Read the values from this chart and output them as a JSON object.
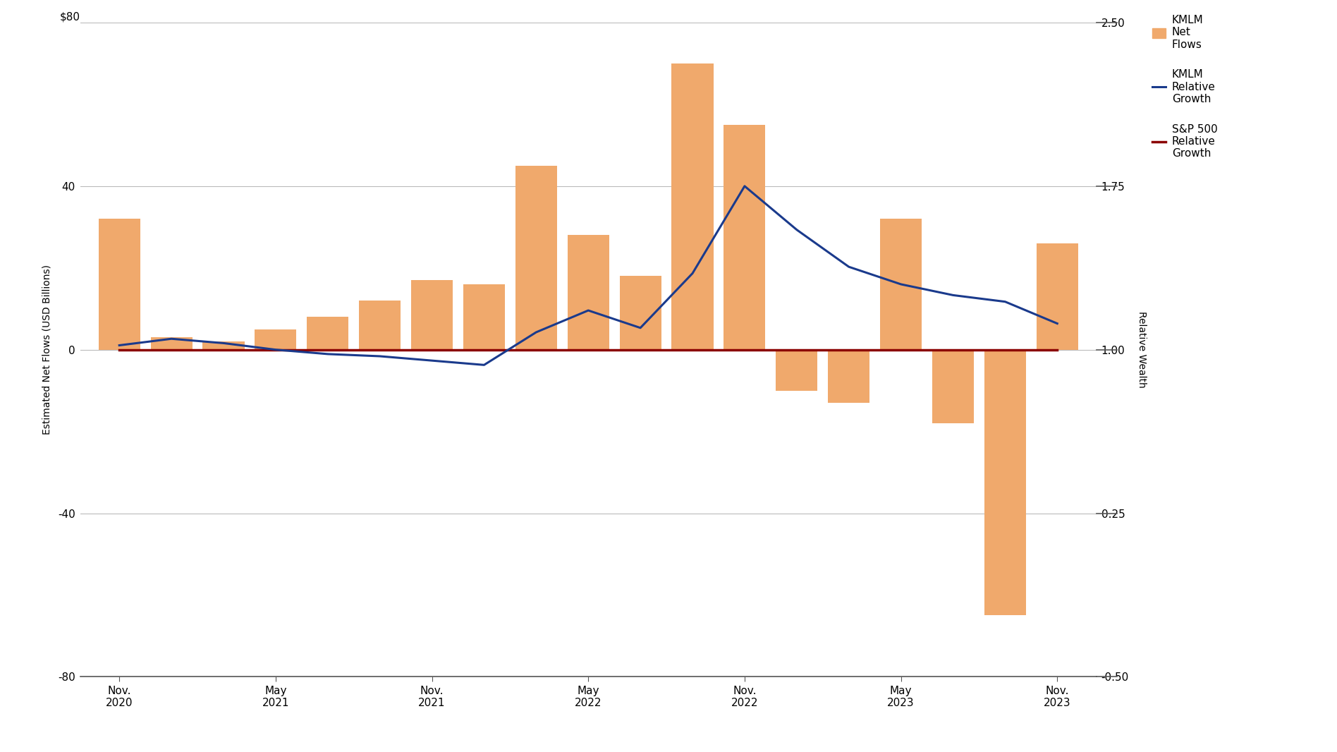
{
  "bar_x": [
    0,
    2,
    4,
    6,
    8,
    10,
    12,
    14,
    16,
    18,
    20,
    22,
    24,
    26,
    28,
    30,
    32,
    34,
    36
  ],
  "bar_values": [
    32,
    3,
    2,
    5,
    8,
    12,
    17,
    16,
    45,
    28,
    18,
    70,
    55,
    -10,
    -13,
    32,
    -18,
    -65,
    26
  ],
  "line_x": [
    0,
    2,
    4,
    6,
    8,
    10,
    12,
    14,
    16,
    18,
    20,
    22,
    24,
    26,
    28,
    30,
    32,
    34,
    36
  ],
  "kmlm_rg": [
    1.02,
    1.05,
    1.03,
    1.0,
    0.98,
    0.97,
    0.95,
    0.93,
    1.08,
    1.18,
    1.1,
    1.35,
    1.75,
    1.55,
    1.38,
    1.3,
    1.25,
    1.22,
    1.12
  ],
  "sp500_rg": [
    1.0,
    1.0,
    1.0,
    1.0,
    1.0,
    1.0,
    1.0,
    1.0,
    1.0,
    1.0,
    1.0,
    1.0,
    1.0,
    1.0,
    1.0,
    1.0,
    1.0,
    1.0,
    1.0
  ],
  "bar_color": "#f0a96c",
  "kmlm_line_color": "#1a3a8c",
  "sp500_line_color": "#8b0000",
  "background_color": "#ffffff",
  "left_ylim": [
    -80,
    80
  ],
  "right_ylim": [
    -0.5,
    2.5
  ],
  "left_yticks": [
    -80,
    -40,
    0,
    40
  ],
  "left_yticklabels": [
    "-80",
    "-40",
    "0",
    "40"
  ],
  "left_ytop_label": "$80",
  "right_yticks": [
    -0.5,
    0.25,
    1.0,
    1.75,
    2.5
  ],
  "right_yticklabels": [
    "-0.50",
    "0.25",
    "1.00",
    "1.75",
    "2.50"
  ],
  "ylabel_left": "Estimated Net Flows (USD Billions)",
  "ylabel_right": "Relative Wealth",
  "xtick_positions": [
    0,
    6,
    12,
    18,
    24,
    30,
    36
  ],
  "xtick_labels": [
    "Nov.\n2020",
    "May\n2021",
    "Nov.\n2021",
    "May\n2022",
    "Nov.\n2022",
    "May\n2023",
    "Nov.\n2023"
  ],
  "legend_labels": [
    "KMLM\nNet\nFlows",
    "KMLM\nRelative\nGrowth",
    "S&P 500\nRelative\nGrowth"
  ],
  "grid_color": "#bbbbbb",
  "tick_fontsize": 11,
  "label_fontsize": 10,
  "xlim": [
    -1.5,
    37.5
  ],
  "bar_width": 1.6
}
